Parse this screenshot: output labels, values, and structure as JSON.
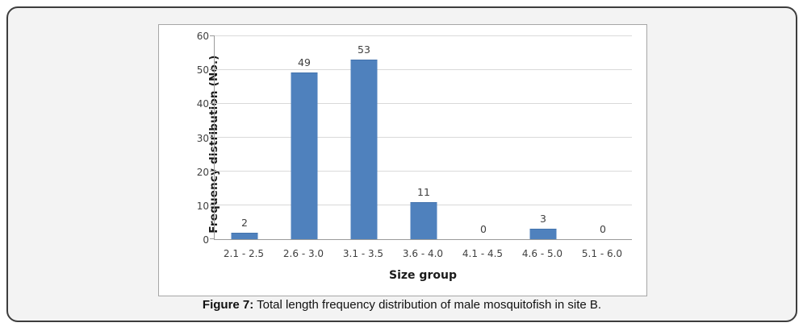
{
  "figure": {
    "caption_label": "Figure 7:",
    "caption_text": " Total length frequency distribution of male mosquitofish in site B."
  },
  "chart_data": {
    "type": "bar",
    "categories": [
      "2.1 - 2.5",
      "2.6 - 3.0",
      "3.1 - 3.5",
      "3.6 - 4.0",
      "4.1 - 4.5",
      "4.6 - 5.0",
      "5.1 - 6.0"
    ],
    "values": [
      2,
      49,
      53,
      11,
      0,
      3,
      0
    ],
    "title": "",
    "xlabel": "Size group",
    "ylabel": "Frequency distribution (No.)",
    "ylim": [
      0,
      60
    ],
    "ytick_step": 10,
    "grid": true,
    "legend": false,
    "data_labels": true,
    "bar_color": "#4f81bd"
  },
  "colors": {
    "bar": "#4f81bd",
    "gridline": "#d9d9d9",
    "axis": "#9b9b9b",
    "panel_background": "#f3f3f3",
    "panel_border": "#3d3d3d",
    "chart_background": "#ffffff",
    "chart_border": "#a6a6a6",
    "tick_text": "#3f3f3f"
  }
}
